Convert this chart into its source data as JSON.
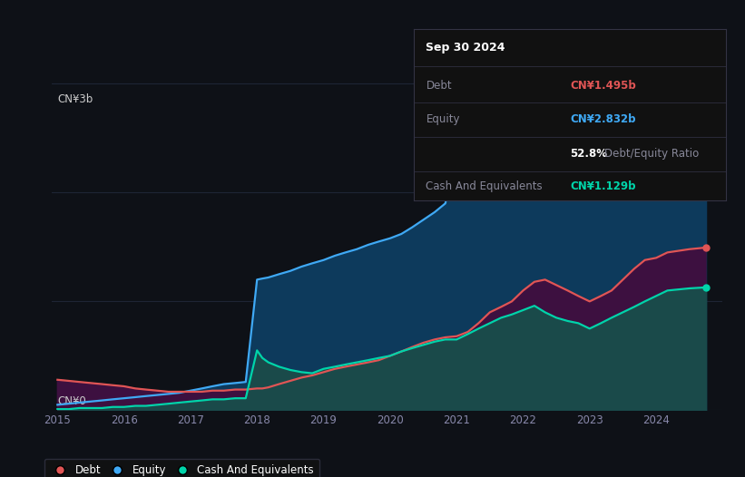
{
  "bg_color": "#0e1117",
  "plot_bg_color": "#0e1117",
  "grid_color": "#1e2535",
  "ylabel_text": "CN¥3b",
  "ylabel0_text": "CN¥0",
  "x_ticks": [
    2015,
    2016,
    2017,
    2018,
    2019,
    2020,
    2021,
    2022,
    2023,
    2024
  ],
  "tooltip_date": "Sep 30 2024",
  "tooltip_debt_label": "Debt",
  "tooltip_debt_value": "CN¥1.495b",
  "tooltip_equity_label": "Equity",
  "tooltip_equity_value": "CN¥2.832b",
  "tooltip_ratio_bold": "52.8%",
  "tooltip_ratio_rest": " Debt/Equity Ratio",
  "tooltip_cash_label": "Cash And Equivalents",
  "tooltip_cash_value": "CN¥1.129b",
  "legend_items": [
    "Debt",
    "Equity",
    "Cash And Equivalents"
  ],
  "debt_color": "#e05555",
  "equity_color": "#3fa9f5",
  "cash_color": "#00d4aa",
  "equity_fill_color": "#0d3a5c",
  "cash_fill_color": "#1a4a4a",
  "debt_fill_color": "#3d1040",
  "years": [
    2015.0,
    2015.17,
    2015.33,
    2015.5,
    2015.67,
    2015.83,
    2016.0,
    2016.17,
    2016.33,
    2016.5,
    2016.67,
    2016.83,
    2017.0,
    2017.17,
    2017.33,
    2017.5,
    2017.67,
    2017.83,
    2018.0,
    2018.08,
    2018.17,
    2018.33,
    2018.5,
    2018.67,
    2018.83,
    2019.0,
    2019.17,
    2019.33,
    2019.5,
    2019.67,
    2019.83,
    2020.0,
    2020.17,
    2020.33,
    2020.5,
    2020.67,
    2020.83,
    2021.0,
    2021.17,
    2021.33,
    2021.5,
    2021.67,
    2021.83,
    2022.0,
    2022.17,
    2022.33,
    2022.5,
    2022.67,
    2022.83,
    2023.0,
    2023.17,
    2023.33,
    2023.5,
    2023.67,
    2023.83,
    2024.0,
    2024.17,
    2024.5,
    2024.75
  ],
  "debt": [
    0.28,
    0.27,
    0.26,
    0.25,
    0.24,
    0.23,
    0.22,
    0.2,
    0.19,
    0.18,
    0.17,
    0.17,
    0.17,
    0.17,
    0.18,
    0.18,
    0.19,
    0.19,
    0.2,
    0.2,
    0.21,
    0.24,
    0.27,
    0.3,
    0.32,
    0.35,
    0.38,
    0.4,
    0.42,
    0.44,
    0.46,
    0.5,
    0.54,
    0.58,
    0.62,
    0.65,
    0.67,
    0.68,
    0.72,
    0.8,
    0.9,
    0.95,
    1.0,
    1.1,
    1.18,
    1.2,
    1.15,
    1.1,
    1.05,
    1.0,
    1.05,
    1.1,
    1.2,
    1.3,
    1.38,
    1.4,
    1.45,
    1.48,
    1.495
  ],
  "equity": [
    0.05,
    0.06,
    0.07,
    0.08,
    0.09,
    0.1,
    0.11,
    0.12,
    0.13,
    0.14,
    0.15,
    0.16,
    0.18,
    0.2,
    0.22,
    0.24,
    0.25,
    0.26,
    1.2,
    1.21,
    1.22,
    1.25,
    1.28,
    1.32,
    1.35,
    1.38,
    1.42,
    1.45,
    1.48,
    1.52,
    1.55,
    1.58,
    1.62,
    1.68,
    1.75,
    1.82,
    1.9,
    2.3,
    2.45,
    2.55,
    2.62,
    2.66,
    2.68,
    2.75,
    2.82,
    2.8,
    2.75,
    2.72,
    2.7,
    2.65,
    2.67,
    2.7,
    2.74,
    2.78,
    2.8,
    2.82,
    2.83,
    2.835,
    2.832
  ],
  "cash": [
    0.01,
    0.01,
    0.02,
    0.02,
    0.02,
    0.03,
    0.03,
    0.04,
    0.04,
    0.05,
    0.06,
    0.07,
    0.08,
    0.09,
    0.1,
    0.1,
    0.11,
    0.11,
    0.55,
    0.48,
    0.44,
    0.4,
    0.37,
    0.35,
    0.34,
    0.38,
    0.4,
    0.42,
    0.44,
    0.46,
    0.48,
    0.5,
    0.54,
    0.57,
    0.6,
    0.63,
    0.65,
    0.65,
    0.7,
    0.75,
    0.8,
    0.85,
    0.88,
    0.92,
    0.96,
    0.9,
    0.85,
    0.82,
    0.8,
    0.75,
    0.8,
    0.85,
    0.9,
    0.95,
    1.0,
    1.05,
    1.1,
    1.12,
    1.129
  ],
  "ylim": [
    0,
    3.2
  ],
  "xlim": [
    2014.92,
    2025.0
  ]
}
